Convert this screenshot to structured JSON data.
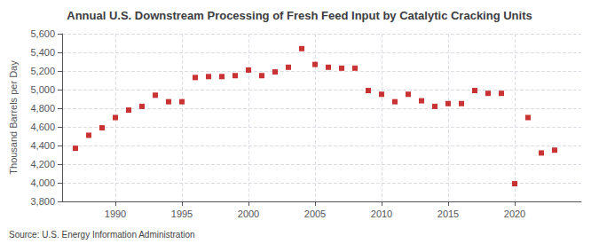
{
  "chart_data": {
    "type": "scatter",
    "title": "Annual U.S. Downstream Processing of Fresh Feed Input by Catalytic Cracking Units",
    "ylabel": "Thousand Barrels per Day",
    "annotation": "Source: U.S. Energy Information Administration",
    "x": [
      1987,
      1988,
      1989,
      1990,
      1991,
      1992,
      1993,
      1994,
      1995,
      1996,
      1997,
      1998,
      1999,
      2000,
      2001,
      2002,
      2003,
      2004,
      2005,
      2006,
      2007,
      2008,
      2009,
      2010,
      2011,
      2012,
      2013,
      2014,
      2015,
      2016,
      2017,
      2018,
      2019,
      2020,
      2021,
      2022,
      2023
    ],
    "values": [
      4370,
      4510,
      4590,
      4700,
      4780,
      4820,
      4940,
      4870,
      4870,
      5130,
      5140,
      5140,
      5150,
      5210,
      5150,
      5190,
      5240,
      5440,
      5270,
      5240,
      5230,
      5230,
      4990,
      4950,
      4870,
      4950,
      4880,
      4820,
      4850,
      4850,
      4990,
      4960,
      4960,
      3990,
      4700,
      4320,
      4350
    ],
    "color": "#bb0000",
    "marker": "square",
    "xlim": [
      1986,
      2025
    ],
    "xticks": [
      1990,
      1995,
      2000,
      2005,
      2010,
      2015,
      2020
    ],
    "ylim": [
      3800,
      5600
    ],
    "yticks": [
      {
        "value": 3800,
        "label": "3,800"
      },
      {
        "value": 4000,
        "label": "4,000"
      },
      {
        "value": 4200,
        "label": "4,200"
      },
      {
        "value": 4400,
        "label": "4,400"
      },
      {
        "value": 4600,
        "label": "4,600"
      },
      {
        "value": 4800,
        "label": "4,800"
      },
      {
        "value": 5000,
        "label": "5,000"
      },
      {
        "value": 5200,
        "label": "5,200"
      },
      {
        "value": 5400,
        "label": "5,400"
      },
      {
        "value": 5600,
        "label": "5,600"
      }
    ],
    "grid": true
  }
}
